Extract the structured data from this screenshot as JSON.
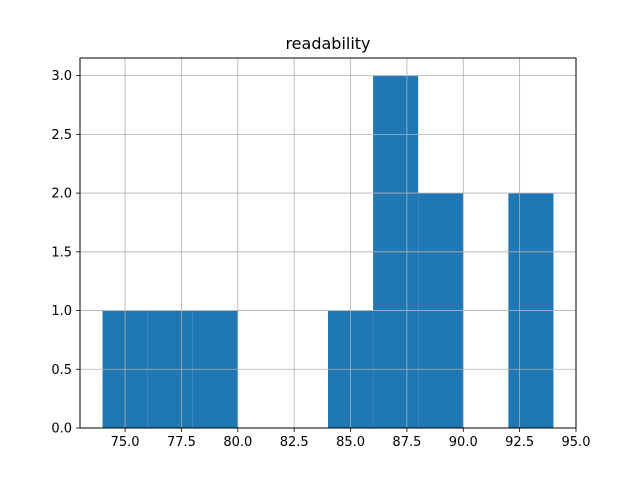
{
  "chart_data": {
    "type": "bar",
    "title": "readability",
    "xlabel": "",
    "ylabel": "",
    "bin_edges": [
      74,
      76,
      78,
      80,
      82,
      84,
      86,
      88,
      90,
      92,
      94
    ],
    "values": [
      1,
      1,
      1,
      0,
      0,
      1,
      3,
      2,
      0,
      2
    ],
    "xlim": [
      73,
      95
    ],
    "ylim": [
      0,
      3.15
    ],
    "xticks": [
      75,
      77.5,
      80,
      82.5,
      85,
      87.5,
      90,
      92.5,
      95
    ],
    "xtick_labels": [
      "75.0",
      "77.5",
      "80.0",
      "82.5",
      "85.0",
      "87.5",
      "90.0",
      "92.5",
      "95.0"
    ],
    "yticks": [
      0,
      0.5,
      1,
      1.5,
      2,
      2.5,
      3
    ],
    "ytick_labels": [
      "0.0",
      "0.5",
      "1.0",
      "1.5",
      "2.0",
      "2.5",
      "3.0"
    ],
    "grid": true,
    "bar_color": "#1f77b4",
    "grid_color": "#b0b0b0"
  }
}
